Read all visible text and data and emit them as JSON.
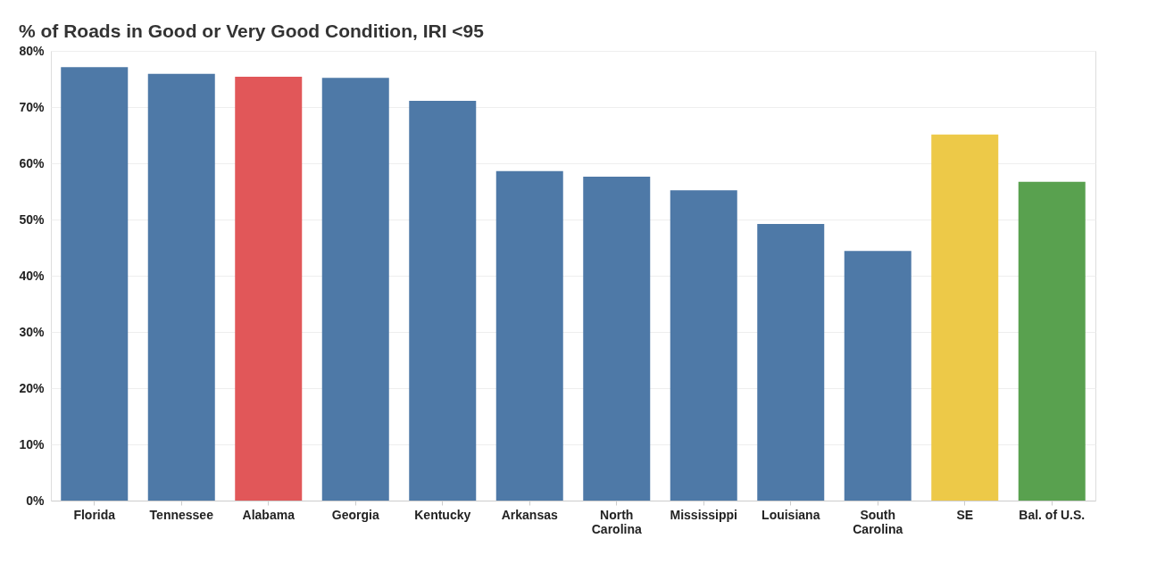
{
  "chart_data": {
    "type": "bar",
    "title": "% of Roads in Good or Very Good Condition, IRI <95",
    "categories": [
      "Florida",
      "Tennessee",
      "Alabama",
      "Georgia",
      "Kentucky",
      "Arkansas",
      "North Carolina",
      "Mississippi",
      "Louisiana",
      "South Carolina",
      "SE",
      "Bal. of U.S."
    ],
    "values": [
      77.1,
      75.9,
      75.4,
      75.2,
      71.1,
      58.6,
      57.6,
      55.2,
      49.2,
      44.4,
      65.1,
      56.7
    ],
    "colors": [
      "#4e79a7",
      "#4e79a7",
      "#e15759",
      "#4e79a7",
      "#4e79a7",
      "#4e79a7",
      "#4e79a7",
      "#4e79a7",
      "#4e79a7",
      "#4e79a7",
      "#edc948",
      "#59a14f"
    ],
    "ylim": [
      0,
      80
    ],
    "yticks": [
      {
        "value": 0,
        "label": "0%"
      },
      {
        "value": 10,
        "label": "10%"
      },
      {
        "value": 20,
        "label": "20%"
      },
      {
        "value": 30,
        "label": "30%"
      },
      {
        "value": 40,
        "label": "40%"
      },
      {
        "value": 50,
        "label": "50%"
      },
      {
        "value": 60,
        "label": "60%"
      },
      {
        "value": 70,
        "label": "70%"
      },
      {
        "value": 80,
        "label": "80%"
      }
    ],
    "grid": "y"
  }
}
